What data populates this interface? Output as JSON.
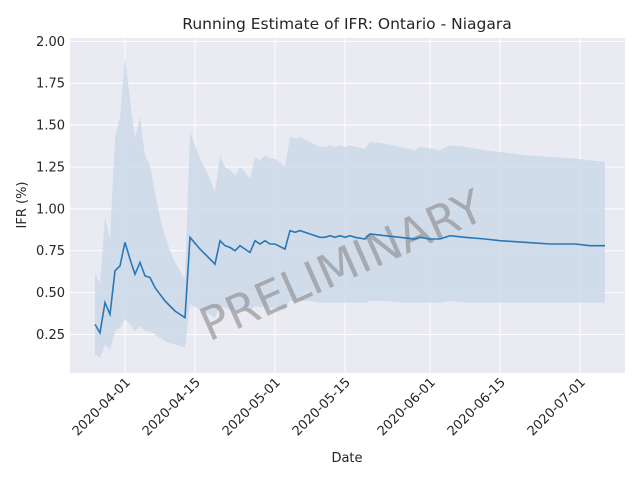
{
  "chart_data": {
    "type": "line",
    "title": "Running Estimate of IFR: Ontario - Niagara",
    "xlabel": "Date",
    "ylabel": "IFR (%)",
    "watermark": "PRELIMINARY",
    "x_range": [
      "2020-03-21",
      "2020-07-10"
    ],
    "ylim": [
      0.02,
      2.02
    ],
    "x_ticks": [
      "2020-04-01",
      "2020-04-15",
      "2020-05-01",
      "2020-05-15",
      "2020-06-01",
      "2020-06-15",
      "2020-07-01"
    ],
    "y_ticks": [
      0.25,
      0.5,
      0.75,
      1.0,
      1.25,
      1.5,
      1.75,
      2.0
    ],
    "grid": true,
    "colors": {
      "line": "#2a77b4",
      "band": "#cdd9ea",
      "plot_bg": "#eaeaf2",
      "grid": "#ffffff"
    },
    "series": [
      {
        "points": [
          [
            "2020-03-26",
            0.31
          ],
          [
            "2020-03-27",
            0.26
          ],
          [
            "2020-03-28",
            0.44
          ],
          [
            "2020-03-29",
            0.37
          ],
          [
            "2020-03-30",
            0.63
          ],
          [
            "2020-03-31",
            0.66
          ],
          [
            "2020-04-01",
            0.8
          ],
          [
            "2020-04-02",
            0.7
          ],
          [
            "2020-04-03",
            0.61
          ],
          [
            "2020-04-04",
            0.68
          ],
          [
            "2020-04-05",
            0.6
          ],
          [
            "2020-04-06",
            0.59
          ],
          [
            "2020-04-07",
            0.53
          ],
          [
            "2020-04-08",
            0.49
          ],
          [
            "2020-04-09",
            0.45
          ],
          [
            "2020-04-10",
            0.42
          ],
          [
            "2020-04-11",
            0.39
          ],
          [
            "2020-04-12",
            0.37
          ],
          [
            "2020-04-13",
            0.35
          ],
          [
            "2020-04-14",
            0.83
          ],
          [
            "2020-04-16",
            0.76
          ],
          [
            "2020-04-18",
            0.7
          ],
          [
            "2020-04-19",
            0.67
          ],
          [
            "2020-04-20",
            0.81
          ],
          [
            "2020-04-21",
            0.78
          ],
          [
            "2020-04-22",
            0.77
          ],
          [
            "2020-04-23",
            0.75
          ],
          [
            "2020-04-24",
            0.78
          ],
          [
            "2020-04-25",
            0.76
          ],
          [
            "2020-04-26",
            0.74
          ],
          [
            "2020-04-27",
            0.81
          ],
          [
            "2020-04-28",
            0.79
          ],
          [
            "2020-04-29",
            0.81
          ],
          [
            "2020-04-30",
            0.79
          ],
          [
            "2020-05-01",
            0.79
          ],
          [
            "2020-05-03",
            0.76
          ],
          [
            "2020-05-04",
            0.87
          ],
          [
            "2020-05-05",
            0.86
          ],
          [
            "2020-05-06",
            0.87
          ],
          [
            "2020-05-08",
            0.85
          ],
          [
            "2020-05-10",
            0.83
          ],
          [
            "2020-05-11",
            0.83
          ],
          [
            "2020-05-12",
            0.84
          ],
          [
            "2020-05-13",
            0.83
          ],
          [
            "2020-05-14",
            0.84
          ],
          [
            "2020-05-15",
            0.83
          ],
          [
            "2020-05-16",
            0.84
          ],
          [
            "2020-05-17",
            0.83
          ],
          [
            "2020-05-19",
            0.82
          ],
          [
            "2020-05-20",
            0.85
          ],
          [
            "2020-05-23",
            0.84
          ],
          [
            "2020-05-26",
            0.83
          ],
          [
            "2020-05-29",
            0.82
          ],
          [
            "2020-05-30",
            0.83
          ],
          [
            "2020-06-01",
            0.82
          ],
          [
            "2020-06-03",
            0.82
          ],
          [
            "2020-06-05",
            0.84
          ],
          [
            "2020-06-08",
            0.83
          ],
          [
            "2020-06-12",
            0.82
          ],
          [
            "2020-06-15",
            0.81
          ],
          [
            "2020-06-20",
            0.8
          ],
          [
            "2020-06-25",
            0.79
          ],
          [
            "2020-06-30",
            0.79
          ],
          [
            "2020-07-03",
            0.78
          ],
          [
            "2020-07-06",
            0.78
          ]
        ],
        "upper": [
          [
            "2020-03-26",
            0.62
          ],
          [
            "2020-03-27",
            0.55
          ],
          [
            "2020-03-28",
            0.95
          ],
          [
            "2020-03-29",
            0.82
          ],
          [
            "2020-03-30",
            1.42
          ],
          [
            "2020-03-31",
            1.55
          ],
          [
            "2020-04-01",
            1.9
          ],
          [
            "2020-04-02",
            1.65
          ],
          [
            "2020-04-03",
            1.42
          ],
          [
            "2020-04-04",
            1.55
          ],
          [
            "2020-04-05",
            1.32
          ],
          [
            "2020-04-06",
            1.26
          ],
          [
            "2020-04-07",
            1.1
          ],
          [
            "2020-04-08",
            0.95
          ],
          [
            "2020-04-09",
            0.84
          ],
          [
            "2020-04-10",
            0.75
          ],
          [
            "2020-04-11",
            0.68
          ],
          [
            "2020-04-12",
            0.63
          ],
          [
            "2020-04-13",
            0.58
          ],
          [
            "2020-04-14",
            1.46
          ],
          [
            "2020-04-16",
            1.3
          ],
          [
            "2020-04-18",
            1.18
          ],
          [
            "2020-04-19",
            1.1
          ],
          [
            "2020-04-20",
            1.32
          ],
          [
            "2020-04-21",
            1.25
          ],
          [
            "2020-04-22",
            1.23
          ],
          [
            "2020-04-23",
            1.2
          ],
          [
            "2020-04-24",
            1.25
          ],
          [
            "2020-04-25",
            1.22
          ],
          [
            "2020-04-26",
            1.18
          ],
          [
            "2020-04-27",
            1.31
          ],
          [
            "2020-04-28",
            1.29
          ],
          [
            "2020-04-29",
            1.32
          ],
          [
            "2020-04-30",
            1.3
          ],
          [
            "2020-05-01",
            1.3
          ],
          [
            "2020-05-03",
            1.25
          ],
          [
            "2020-05-04",
            1.43
          ],
          [
            "2020-05-05",
            1.42
          ],
          [
            "2020-05-06",
            1.43
          ],
          [
            "2020-05-08",
            1.4
          ],
          [
            "2020-05-10",
            1.37
          ],
          [
            "2020-05-11",
            1.37
          ],
          [
            "2020-05-12",
            1.38
          ],
          [
            "2020-05-13",
            1.37
          ],
          [
            "2020-05-14",
            1.38
          ],
          [
            "2020-05-15",
            1.37
          ],
          [
            "2020-05-16",
            1.38
          ],
          [
            "2020-05-17",
            1.37
          ],
          [
            "2020-05-19",
            1.36
          ],
          [
            "2020-05-20",
            1.4
          ],
          [
            "2020-05-23",
            1.39
          ],
          [
            "2020-05-26",
            1.37
          ],
          [
            "2020-05-29",
            1.35
          ],
          [
            "2020-05-30",
            1.37
          ],
          [
            "2020-06-01",
            1.36
          ],
          [
            "2020-06-03",
            1.35
          ],
          [
            "2020-06-05",
            1.38
          ],
          [
            "2020-06-08",
            1.37
          ],
          [
            "2020-06-12",
            1.35
          ],
          [
            "2020-06-15",
            1.34
          ],
          [
            "2020-06-20",
            1.32
          ],
          [
            "2020-06-25",
            1.31
          ],
          [
            "2020-06-30",
            1.3
          ],
          [
            "2020-07-03",
            1.29
          ],
          [
            "2020-07-06",
            1.28
          ]
        ],
        "lower": [
          [
            "2020-03-26",
            0.13
          ],
          [
            "2020-03-27",
            0.11
          ],
          [
            "2020-03-28",
            0.19
          ],
          [
            "2020-03-29",
            0.16
          ],
          [
            "2020-03-30",
            0.27
          ],
          [
            "2020-03-31",
            0.29
          ],
          [
            "2020-04-01",
            0.34
          ],
          [
            "2020-04-02",
            0.31
          ],
          [
            "2020-04-03",
            0.27
          ],
          [
            "2020-04-04",
            0.3
          ],
          [
            "2020-04-05",
            0.27
          ],
          [
            "2020-04-06",
            0.27
          ],
          [
            "2020-04-07",
            0.25
          ],
          [
            "2020-04-08",
            0.23
          ],
          [
            "2020-04-09",
            0.21
          ],
          [
            "2020-04-10",
            0.2
          ],
          [
            "2020-04-11",
            0.19
          ],
          [
            "2020-04-12",
            0.18
          ],
          [
            "2020-04-13",
            0.17
          ],
          [
            "2020-04-14",
            0.43
          ],
          [
            "2020-04-16",
            0.4
          ],
          [
            "2020-04-18",
            0.37
          ],
          [
            "2020-04-19",
            0.35
          ],
          [
            "2020-04-20",
            0.42
          ],
          [
            "2020-04-21",
            0.41
          ],
          [
            "2020-04-22",
            0.4
          ],
          [
            "2020-04-23",
            0.39
          ],
          [
            "2020-04-24",
            0.41
          ],
          [
            "2020-04-25",
            0.4
          ],
          [
            "2020-04-26",
            0.39
          ],
          [
            "2020-04-27",
            0.42
          ],
          [
            "2020-04-28",
            0.41
          ],
          [
            "2020-04-29",
            0.42
          ],
          [
            "2020-04-30",
            0.41
          ],
          [
            "2020-05-01",
            0.41
          ],
          [
            "2020-05-03",
            0.4
          ],
          [
            "2020-05-04",
            0.45
          ],
          [
            "2020-05-05",
            0.45
          ],
          [
            "2020-05-06",
            0.45
          ],
          [
            "2020-05-08",
            0.45
          ],
          [
            "2020-05-10",
            0.44
          ],
          [
            "2020-05-11",
            0.44
          ],
          [
            "2020-05-12",
            0.44
          ],
          [
            "2020-05-13",
            0.44
          ],
          [
            "2020-05-14",
            0.44
          ],
          [
            "2020-05-15",
            0.44
          ],
          [
            "2020-05-16",
            0.44
          ],
          [
            "2020-05-17",
            0.44
          ],
          [
            "2020-05-19",
            0.44
          ],
          [
            "2020-05-20",
            0.45
          ],
          [
            "2020-05-23",
            0.45
          ],
          [
            "2020-05-26",
            0.44
          ],
          [
            "2020-05-29",
            0.44
          ],
          [
            "2020-05-30",
            0.44
          ],
          [
            "2020-06-01",
            0.44
          ],
          [
            "2020-06-03",
            0.44
          ],
          [
            "2020-06-05",
            0.45
          ],
          [
            "2020-06-08",
            0.44
          ],
          [
            "2020-06-12",
            0.44
          ],
          [
            "2020-06-15",
            0.44
          ],
          [
            "2020-06-20",
            0.44
          ],
          [
            "2020-06-25",
            0.44
          ],
          [
            "2020-06-30",
            0.44
          ],
          [
            "2020-07-03",
            0.44
          ],
          [
            "2020-07-06",
            0.44
          ]
        ]
      }
    ]
  }
}
